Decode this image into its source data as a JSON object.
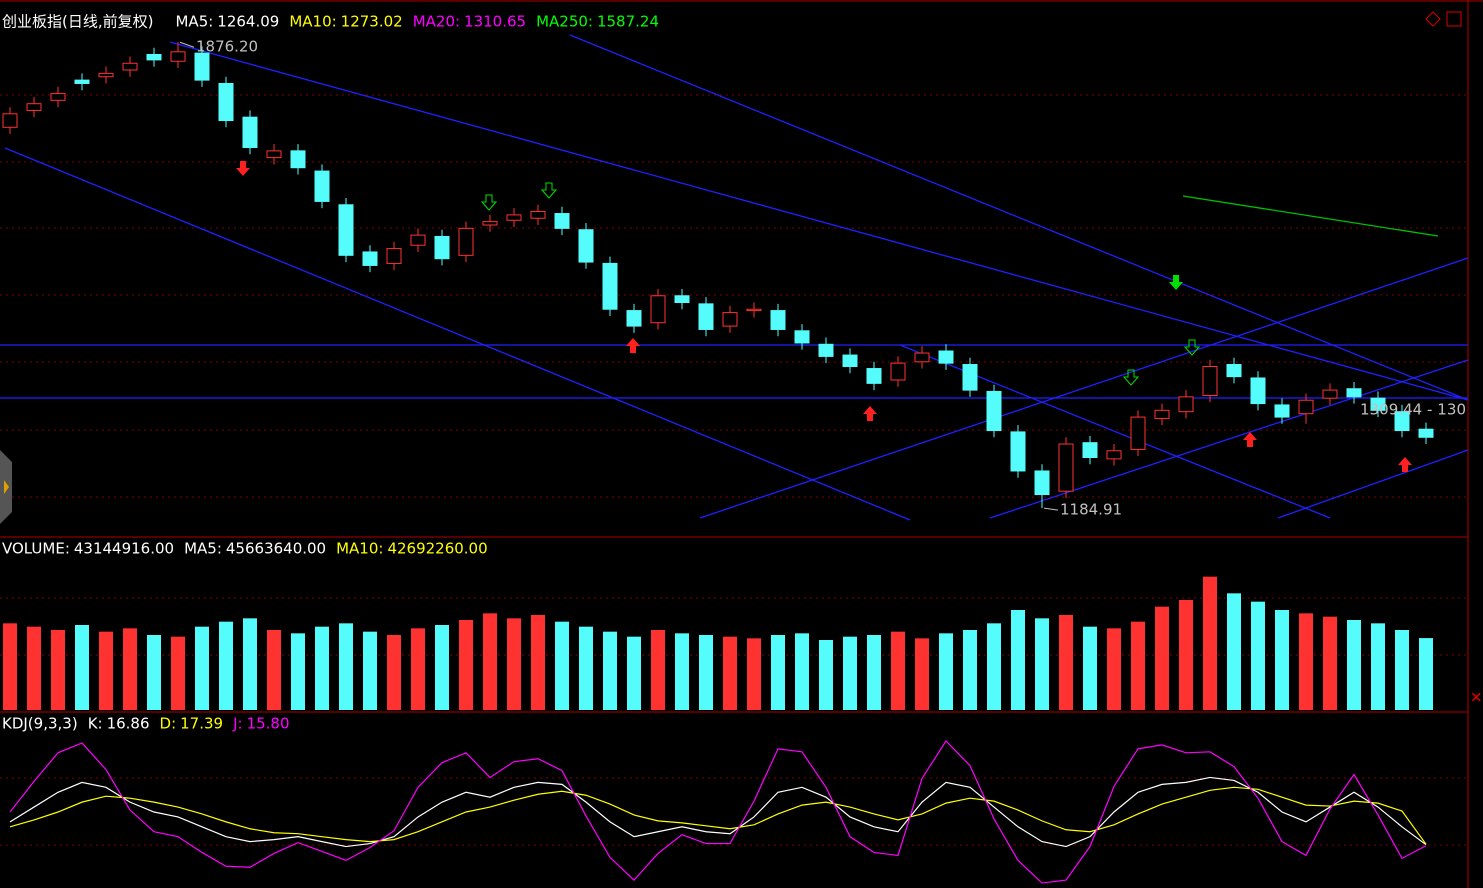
{
  "chart_data": {
    "type": "candlestick",
    "title": "创业板指(日线,前复权)",
    "indicators": [
      {
        "label": "MA5:",
        "value": 1264.09,
        "color": "#ffffff"
      },
      {
        "label": "MA10:",
        "value": 1273.02,
        "color": "#ffff00"
      },
      {
        "label": "MA20:",
        "value": 1310.65,
        "color": "#ff00ff"
      },
      {
        "label": "MA250:",
        "value": 1587.24,
        "color": "#00ff00"
      }
    ],
    "ylim": [
      1145,
      1927
    ],
    "up_color": "#ff3232",
    "down_color": "#54fcfc",
    "candles": {
      "open": [
        1750,
        1775,
        1790,
        1820,
        1825,
        1835,
        1858,
        1848,
        1860,
        1815,
        1765,
        1705,
        1715,
        1685,
        1635,
        1565,
        1548,
        1575,
        1588,
        1560,
        1605,
        1612,
        1615,
        1622,
        1598,
        1548,
        1478,
        1460,
        1500,
        1488,
        1455,
        1478,
        1478,
        1448,
        1428,
        1412,
        1392,
        1375,
        1402,
        1418,
        1398,
        1358,
        1298,
        1240,
        1210,
        1282,
        1258,
        1272,
        1318,
        1328,
        1352,
        1398,
        1378,
        1338,
        1325,
        1348,
        1362,
        1348,
        1328,
        1302
      ],
      "high": [
        1780,
        1795,
        1810,
        1830,
        1840,
        1855,
        1868,
        1876.2,
        1870,
        1825,
        1775,
        1725,
        1725,
        1695,
        1645,
        1575,
        1580,
        1600,
        1598,
        1610,
        1620,
        1630,
        1635,
        1632,
        1608,
        1558,
        1488,
        1510,
        1510,
        1498,
        1485,
        1490,
        1488,
        1458,
        1438,
        1422,
        1402,
        1410,
        1425,
        1428,
        1408,
        1368,
        1308,
        1250,
        1290,
        1292,
        1280,
        1330,
        1340,
        1360,
        1405,
        1408,
        1388,
        1348,
        1355,
        1370,
        1372,
        1358,
        1338,
        1312
      ],
      "low": [
        1740,
        1765,
        1780,
        1805,
        1815,
        1825,
        1840,
        1838,
        1810,
        1750,
        1710,
        1695,
        1680,
        1630,
        1550,
        1535,
        1538,
        1565,
        1545,
        1550,
        1595,
        1602,
        1605,
        1590,
        1540,
        1470,
        1445,
        1450,
        1480,
        1440,
        1445,
        1468,
        1440,
        1420,
        1400,
        1385,
        1360,
        1365,
        1392,
        1390,
        1350,
        1290,
        1230,
        1184.91,
        1200,
        1250,
        1248,
        1262,
        1308,
        1318,
        1342,
        1370,
        1330,
        1310,
        1310,
        1338,
        1340,
        1320,
        1290,
        1280
      ],
      "close": [
        1770,
        1785,
        1800,
        1815,
        1830,
        1845,
        1850,
        1862,
        1820,
        1760,
        1720,
        1715,
        1690,
        1640,
        1560,
        1545,
        1570,
        1590,
        1555,
        1600,
        1610,
        1620,
        1625,
        1600,
        1550,
        1480,
        1455,
        1500,
        1490,
        1450,
        1475,
        1480,
        1450,
        1430,
        1410,
        1395,
        1370,
        1400,
        1415,
        1400,
        1360,
        1300,
        1240,
        1205,
        1280,
        1260,
        1270,
        1320,
        1330,
        1350,
        1395,
        1380,
        1340,
        1320,
        1345,
        1360,
        1350,
        1330,
        1300,
        1290
      ]
    },
    "annotations": [
      "1876.20",
      "1184.91",
      "1309.44 - 130"
    ],
    "volume": {
      "indicators": [
        {
          "label": "VOLUME:",
          "value": 43144916,
          "value_label": "43144916.00",
          "color": "#ffffff"
        },
        {
          "label": "MA5:",
          "value": 45663640,
          "value_label": "45663640.00",
          "color": "#ffffff"
        },
        {
          "label": "MA10:",
          "value": 42692260,
          "value_label": "42692260.00",
          "color": "#ffff00"
        }
      ],
      "ylim": [
        0,
        90000000
      ],
      "values": [
        52000000,
        50000000,
        48000000,
        51000000,
        47000000,
        49000000,
        45000000,
        44000000,
        50000000,
        53000000,
        55000000,
        48000000,
        46000000,
        50000000,
        52000000,
        47000000,
        45000000,
        49000000,
        51000000,
        54000000,
        58000000,
        55000000,
        57000000,
        53000000,
        50000000,
        47000000,
        44000000,
        48000000,
        46000000,
        45000000,
        44000000,
        43000000,
        45000000,
        46000000,
        42000000,
        44000000,
        45000000,
        47000000,
        43000000,
        46000000,
        48000000,
        52000000,
        60000000,
        55000000,
        57000000,
        50000000,
        49000000,
        53000000,
        62000000,
        66000000,
        80000000,
        70000000,
        65000000,
        60000000,
        58000000,
        56000000,
        54000000,
        52000000,
        48000000,
        43144916
      ]
    },
    "kdj": {
      "indicators": [
        {
          "label": "KDJ(9,3,3)",
          "color": "#ffffff"
        },
        {
          "label": "K:",
          "value": 16.86,
          "color": "#ffffff"
        },
        {
          "label": "D:",
          "value": 17.39,
          "color": "#ffff00"
        },
        {
          "label": "J:",
          "value": 15.8,
          "value_label": "15.80",
          "color": "#ff00ff"
        }
      ],
      "ylim": [
        -25,
        125
      ],
      "series": [
        {
          "name": "K",
          "color": "#ffffff",
          "values": [
            40,
            55,
            70,
            80,
            75,
            60,
            50,
            45,
            35,
            25,
            20,
            22,
            25,
            20,
            15,
            18,
            25,
            45,
            60,
            70,
            65,
            75,
            80,
            78,
            60,
            40,
            25,
            30,
            35,
            30,
            28,
            45,
            70,
            75,
            65,
            45,
            35,
            30,
            60,
            80,
            75,
            55,
            35,
            20,
            15,
            25,
            50,
            70,
            78,
            80,
            85,
            82,
            70,
            50,
            40,
            55,
            70,
            55,
            35,
            16.86
          ]
        },
        {
          "name": "D",
          "color": "#ffff00",
          "values": [
            35,
            42,
            50,
            60,
            66,
            64,
            60,
            55,
            48,
            40,
            33,
            29,
            28,
            25,
            22,
            20,
            22,
            30,
            40,
            50,
            55,
            62,
            68,
            71,
            67,
            58,
            47,
            41,
            39,
            36,
            33,
            37,
            48,
            57,
            60,
            55,
            48,
            42,
            48,
            59,
            64,
            61,
            52,
            41,
            32,
            30,
            37,
            48,
            58,
            65,
            72,
            75,
            73,
            65,
            57,
            56,
            61,
            59,
            51,
            17.39
          ]
        },
        {
          "name": "J",
          "color": "#ff00ff",
          "values": [
            50,
            81,
            110,
            120,
            93,
            52,
            30,
            25,
            9,
            -5,
            -6,
            8,
            19,
            10,
            1,
            14,
            31,
            75,
            100,
            110,
            85,
            101,
            104,
            92,
            46,
            4,
            -19,
            8,
            27,
            18,
            18,
            61,
            114,
            111,
            75,
            25,
            9,
            6,
            84,
            122,
            97,
            43,
            1,
            -22,
            -19,
            15,
            76,
            114,
            118,
            110,
            111,
            96,
            64,
            20,
            6,
            53,
            88,
            47,
            3,
            15.8
          ]
        }
      ]
    }
  }
}
